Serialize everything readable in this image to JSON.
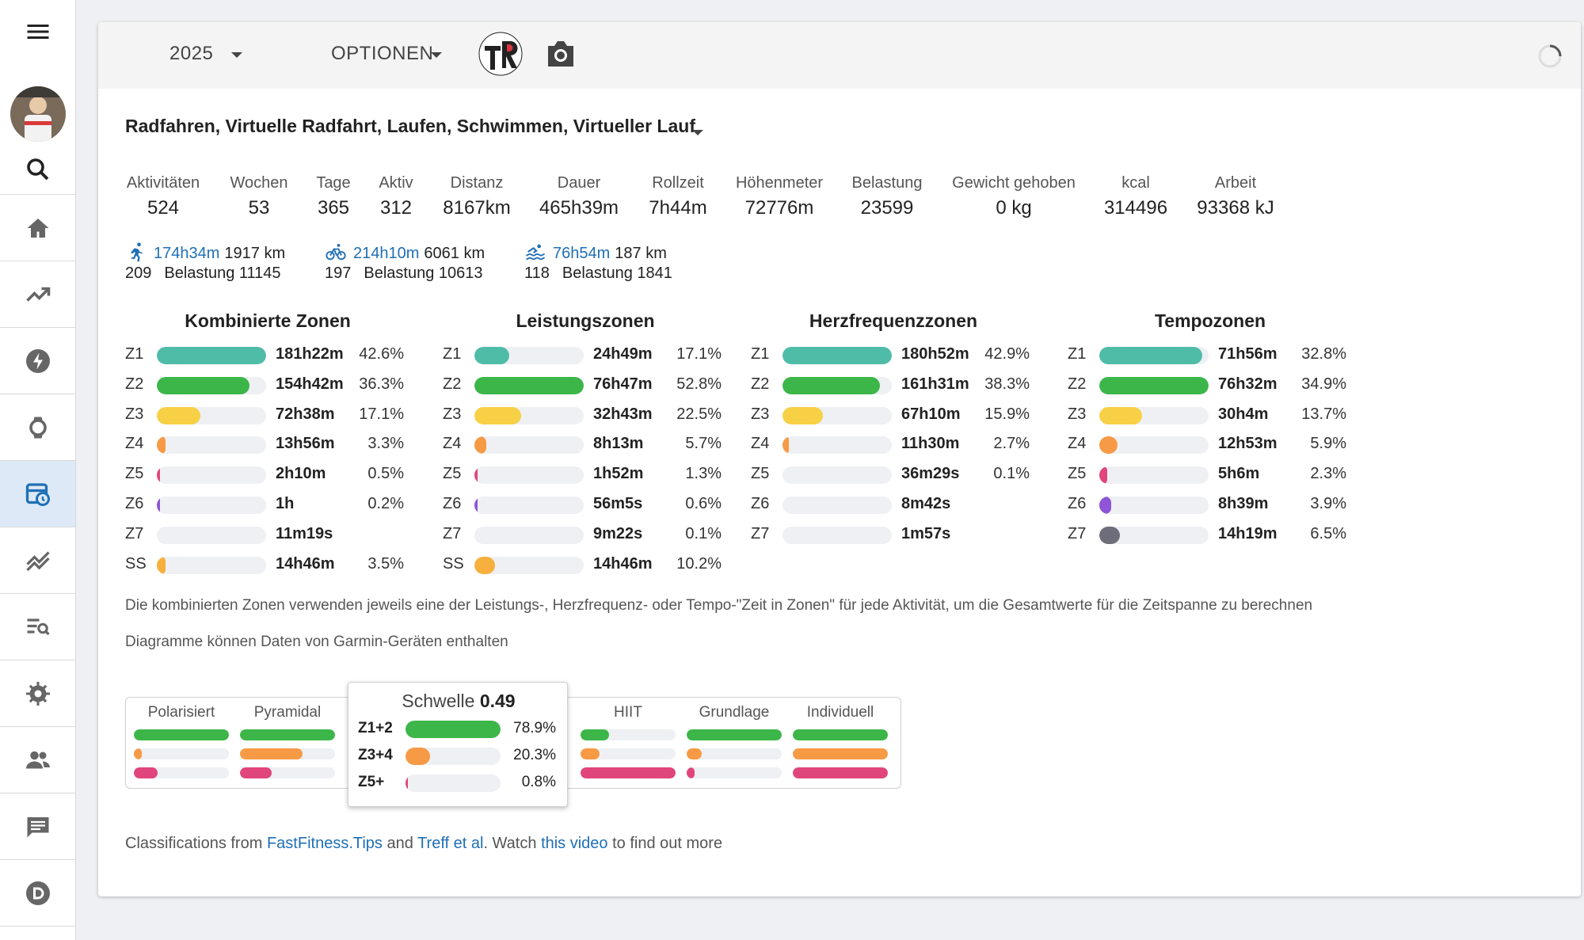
{
  "toolbar": {
    "year": "2025",
    "options_label": "OPTIONEN"
  },
  "sports_title": "Radfahren, Virtuelle Radfahrt, Laufen, Schwimmen, Virtueller Lauf",
  "stats": [
    {
      "label": "Aktivitäten",
      "value": "524"
    },
    {
      "label": "Wochen",
      "value": "53"
    },
    {
      "label": "Tage",
      "value": "365"
    },
    {
      "label": "Aktiv",
      "value": "312"
    },
    {
      "label": "Distanz",
      "value": "8167km"
    },
    {
      "label": "Dauer",
      "value": "465h39m"
    },
    {
      "label": "Rollzeit",
      "value": "7h44m"
    },
    {
      "label": "Höhenmeter",
      "value": "72776m"
    },
    {
      "label": "Belastung",
      "value": "23599"
    },
    {
      "label": "Gewicht gehoben",
      "value": "0 kg"
    },
    {
      "label": "kcal",
      "value": "314496"
    },
    {
      "label": "Arbeit",
      "value": "93368 kJ"
    }
  ],
  "sports": [
    {
      "icon": "run-icon",
      "duration": "174h34m",
      "distance": "1917 km",
      "count": "209",
      "load": "Belastung 11145"
    },
    {
      "icon": "bike-icon",
      "duration": "214h10m",
      "distance": "6061 km",
      "count": "197",
      "load": "Belastung 10613"
    },
    {
      "icon": "swim-icon",
      "duration": "76h54m",
      "distance": "187 km",
      "count": "118",
      "load": "Belastung 1841"
    }
  ],
  "zone_colors": {
    "Z1": "#4fbca8",
    "Z2": "#3cb648",
    "Z3": "#f7d046",
    "Z4": "#f79a45",
    "Z5": "#e0457b",
    "Z6": "#8e55d6",
    "Z7": "#6e6e7a",
    "SS": "#f7b03d"
  },
  "zone_tables": [
    {
      "title": "Kombinierte Zonen",
      "rows": [
        {
          "zone": "Z1",
          "time": "181h22m",
          "pct": "42.6%",
          "fill": 1.0
        },
        {
          "zone": "Z2",
          "time": "154h42m",
          "pct": "36.3%",
          "fill": 0.85
        },
        {
          "zone": "Z3",
          "time": "72h38m",
          "pct": "17.1%",
          "fill": 0.4
        },
        {
          "zone": "Z4",
          "time": "13h56m",
          "pct": "3.3%",
          "fill": 0.08
        },
        {
          "zone": "Z5",
          "time": "2h10m",
          "pct": "0.5%",
          "fill": 0.012
        },
        {
          "zone": "Z6",
          "time": "1h",
          "pct": "0.2%",
          "fill": 0.005
        },
        {
          "zone": "Z7",
          "time": "11m19s",
          "pct": "",
          "fill": 0.0
        },
        {
          "zone": "SS",
          "time": "14h46m",
          "pct": "3.5%",
          "fill": 0.08
        }
      ]
    },
    {
      "title": "Leistungszonen",
      "rows": [
        {
          "zone": "Z1",
          "time": "24h49m",
          "pct": "17.1%",
          "fill": 0.32
        },
        {
          "zone": "Z2",
          "time": "76h47m",
          "pct": "52.8%",
          "fill": 1.0
        },
        {
          "zone": "Z3",
          "time": "32h43m",
          "pct": "22.5%",
          "fill": 0.43
        },
        {
          "zone": "Z4",
          "time": "8h13m",
          "pct": "5.7%",
          "fill": 0.11
        },
        {
          "zone": "Z5",
          "time": "1h52m",
          "pct": "1.3%",
          "fill": 0.03
        },
        {
          "zone": "Z6",
          "time": "56m5s",
          "pct": "0.6%",
          "fill": 0.012
        },
        {
          "zone": "Z7",
          "time": "9m22s",
          "pct": "0.1%",
          "fill": 0.0
        },
        {
          "zone": "SS",
          "time": "14h46m",
          "pct": "10.2%",
          "fill": 0.19
        }
      ]
    },
    {
      "title": "Herzfrequenzzonen",
      "rows": [
        {
          "zone": "Z1",
          "time": "180h52m",
          "pct": "42.9%",
          "fill": 1.0
        },
        {
          "zone": "Z2",
          "time": "161h31m",
          "pct": "38.3%",
          "fill": 0.89
        },
        {
          "zone": "Z3",
          "time": "67h10m",
          "pct": "15.9%",
          "fill": 0.37
        },
        {
          "zone": "Z4",
          "time": "11h30m",
          "pct": "2.7%",
          "fill": 0.06
        },
        {
          "zone": "Z5",
          "time": "36m29s",
          "pct": "0.1%",
          "fill": 0.0
        },
        {
          "zone": "Z6",
          "time": "8m42s",
          "pct": "",
          "fill": 0.0
        },
        {
          "zone": "Z7",
          "time": "1m57s",
          "pct": "",
          "fill": 0.0
        }
      ]
    },
    {
      "title": "Tempozonen",
      "rows": [
        {
          "zone": "Z1",
          "time": "71h56m",
          "pct": "32.8%",
          "fill": 0.94
        },
        {
          "zone": "Z2",
          "time": "76h32m",
          "pct": "34.9%",
          "fill": 1.0
        },
        {
          "zone": "Z3",
          "time": "30h4m",
          "pct": "13.7%",
          "fill": 0.39
        },
        {
          "zone": "Z4",
          "time": "12h53m",
          "pct": "5.9%",
          "fill": 0.17
        },
        {
          "zone": "Z5",
          "time": "5h6m",
          "pct": "2.3%",
          "fill": 0.07
        },
        {
          "zone": "Z6",
          "time": "8h39m",
          "pct": "3.9%",
          "fill": 0.11
        },
        {
          "zone": "Z7",
          "time": "14h19m",
          "pct": "6.5%",
          "fill": 0.19
        }
      ]
    }
  ],
  "notes": {
    "combined": "Die kombinierten Zonen verwenden jeweils eine der Leistungs-, Herzfrequenz- oder Tempo-\"Zeit in Zonen\" für jede Aktivität, um die Gesamtwerte für die Zeitspanne zu berechnen",
    "garmin": "Diagramme können Daten von Garmin-Geräten enthalten"
  },
  "classification": {
    "colors": [
      "#3cb648",
      "#f79a45",
      "#e0457b"
    ],
    "columns": [
      {
        "name": "Polarisiert",
        "fills": [
          1.0,
          0.08,
          0.25
        ]
      },
      {
        "name": "Pyramidal",
        "fills": [
          1.0,
          0.66,
          0.33
        ]
      },
      {
        "name": "HIIT",
        "fills": [
          0.3,
          0.2,
          1.0
        ]
      },
      {
        "name": "Grundlage",
        "fills": [
          1.0,
          0.16,
          0.08
        ]
      },
      {
        "name": "Individuell",
        "fills": [
          1.0,
          1.0,
          1.0
        ]
      }
    ],
    "popup": {
      "name": "Schwelle",
      "score": "0.49",
      "rows": [
        {
          "label": "Z1+2",
          "pct": "78.9%",
          "fill": 1.0
        },
        {
          "label": "Z3+4",
          "pct": "20.3%",
          "fill": 0.26
        },
        {
          "label": "Z5+",
          "pct": "0.8%",
          "fill": 0.01
        }
      ]
    }
  },
  "footer": {
    "prefix": "Classifications from",
    "link1": "FastFitness.Tips",
    "and": "and",
    "link2": "Treff et al",
    "watch": ". Watch",
    "link3": "this video",
    "suffix": "to find out more"
  }
}
